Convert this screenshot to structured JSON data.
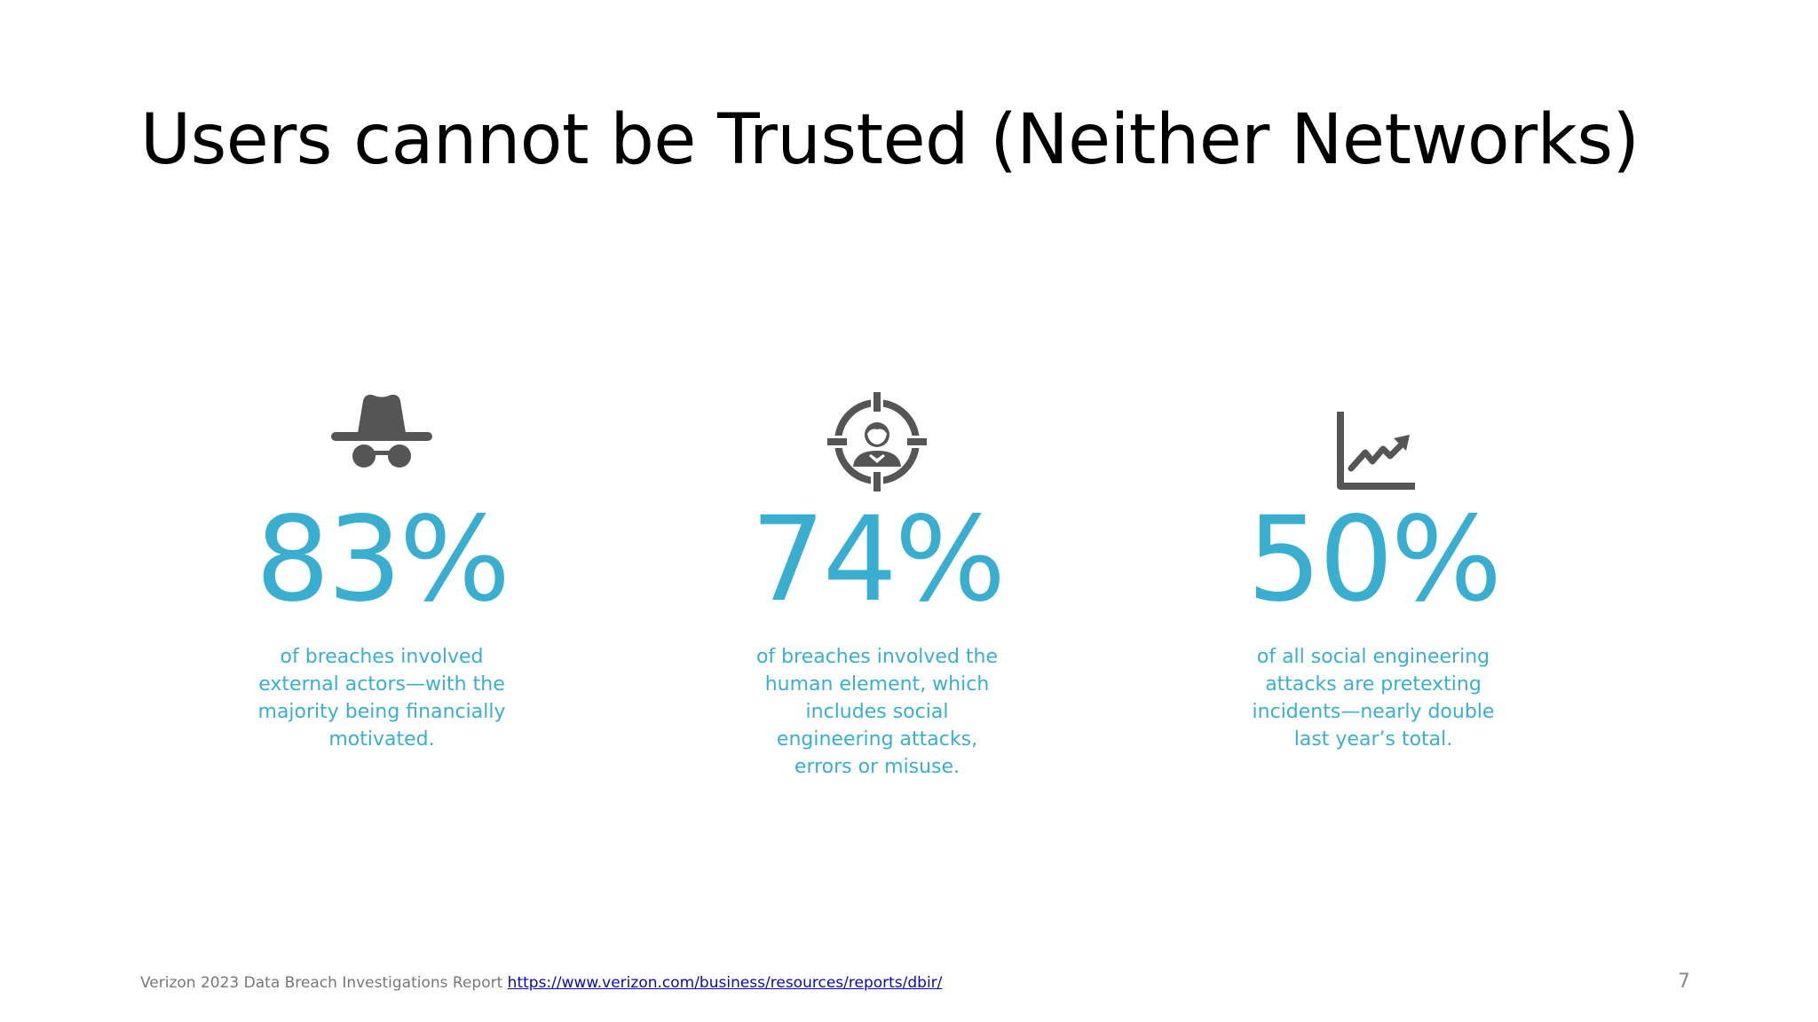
{
  "slide": {
    "title": "Users cannot be Trusted (Neither Networks)",
    "accent_color": "#3aaed0",
    "icon_color": "#555555",
    "page_number": "7"
  },
  "stats": [
    {
      "icon": "spy-hat-glasses-icon",
      "value": "83%",
      "description": "of breaches involved external actors—with the majority being financially motivated."
    },
    {
      "icon": "target-user-icon",
      "value": "74%",
      "description": "of breaches involved the human element, which includes social engineering attacks, errors or misuse."
    },
    {
      "icon": "line-chart-up-icon",
      "value": "50%",
      "description": "of all social engineering attacks are pretexting incidents—nearly double last year’s total."
    }
  ],
  "footer": {
    "source_text": "Verizon 2023 Data Breach Investigations Report ",
    "link_text": "https://www.verizon.com/business/resources/reports/dbir/"
  }
}
